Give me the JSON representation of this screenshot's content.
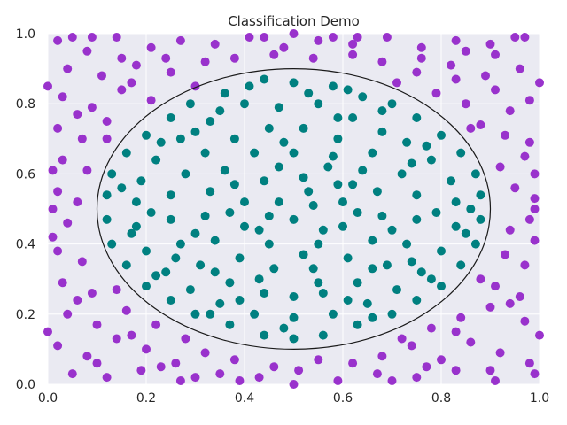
{
  "chart_data": {
    "type": "scatter",
    "title": "Classification Demo",
    "xlabel": "",
    "ylabel": "",
    "xlim": [
      0.0,
      1.0
    ],
    "ylim": [
      0.0,
      1.0
    ],
    "x_ticks": [
      "0.0",
      "0.2",
      "0.4",
      "0.6",
      "0.8",
      "1.0"
    ],
    "y_ticks": [
      "0.0",
      "0.2",
      "0.4",
      "0.6",
      "0.8",
      "1.0"
    ],
    "grid": true,
    "legend": "none",
    "background_color": "#eaeaf2",
    "boundary": {
      "shape": "ellipse",
      "center": [
        0.5,
        0.5
      ],
      "radius_x": 0.4,
      "radius_y": 0.4,
      "color": "#1a1a1a"
    },
    "series": [
      {
        "class": "inside",
        "color": "#008080",
        "points": [
          [
            0.5,
            0.86
          ],
          [
            0.44,
            0.87
          ],
          [
            0.58,
            0.85
          ],
          [
            0.36,
            0.83
          ],
          [
            0.64,
            0.82
          ],
          [
            0.29,
            0.8
          ],
          [
            0.7,
            0.8
          ],
          [
            0.25,
            0.76
          ],
          [
            0.75,
            0.76
          ],
          [
            0.2,
            0.71
          ],
          [
            0.8,
            0.71
          ],
          [
            0.16,
            0.66
          ],
          [
            0.84,
            0.66
          ],
          [
            0.13,
            0.6
          ],
          [
            0.87,
            0.6
          ],
          [
            0.12,
            0.54
          ],
          [
            0.88,
            0.54
          ],
          [
            0.12,
            0.47
          ],
          [
            0.88,
            0.47
          ],
          [
            0.13,
            0.4
          ],
          [
            0.87,
            0.4
          ],
          [
            0.16,
            0.34
          ],
          [
            0.84,
            0.34
          ],
          [
            0.2,
            0.28
          ],
          [
            0.8,
            0.28
          ],
          [
            0.25,
            0.24
          ],
          [
            0.75,
            0.24
          ],
          [
            0.3,
            0.2
          ],
          [
            0.7,
            0.2
          ],
          [
            0.37,
            0.17
          ],
          [
            0.63,
            0.17
          ],
          [
            0.44,
            0.14
          ],
          [
            0.56,
            0.14
          ],
          [
            0.5,
            0.13
          ],
          [
            0.4,
            0.8
          ],
          [
            0.47,
            0.79
          ],
          [
            0.55,
            0.8
          ],
          [
            0.62,
            0.76
          ],
          [
            0.33,
            0.75
          ],
          [
            0.27,
            0.7
          ],
          [
            0.68,
            0.72
          ],
          [
            0.73,
            0.69
          ],
          [
            0.22,
            0.64
          ],
          [
            0.78,
            0.64
          ],
          [
            0.19,
            0.58
          ],
          [
            0.82,
            0.58
          ],
          [
            0.18,
            0.52
          ],
          [
            0.83,
            0.52
          ],
          [
            0.18,
            0.45
          ],
          [
            0.83,
            0.45
          ],
          [
            0.2,
            0.38
          ],
          [
            0.8,
            0.38
          ],
          [
            0.24,
            0.32
          ],
          [
            0.76,
            0.32
          ],
          [
            0.29,
            0.27
          ],
          [
            0.71,
            0.27
          ],
          [
            0.35,
            0.23
          ],
          [
            0.65,
            0.23
          ],
          [
            0.42,
            0.2
          ],
          [
            0.58,
            0.2
          ],
          [
            0.5,
            0.19
          ],
          [
            0.45,
            0.73
          ],
          [
            0.52,
            0.73
          ],
          [
            0.38,
            0.7
          ],
          [
            0.59,
            0.7
          ],
          [
            0.32,
            0.66
          ],
          [
            0.66,
            0.66
          ],
          [
            0.28,
            0.6
          ],
          [
            0.72,
            0.6
          ],
          [
            0.25,
            0.54
          ],
          [
            0.75,
            0.54
          ],
          [
            0.25,
            0.47
          ],
          [
            0.75,
            0.47
          ],
          [
            0.27,
            0.4
          ],
          [
            0.73,
            0.4
          ],
          [
            0.31,
            0.34
          ],
          [
            0.69,
            0.34
          ],
          [
            0.37,
            0.29
          ],
          [
            0.63,
            0.29
          ],
          [
            0.44,
            0.26
          ],
          [
            0.56,
            0.26
          ],
          [
            0.5,
            0.25
          ],
          [
            0.42,
            0.66
          ],
          [
            0.5,
            0.66
          ],
          [
            0.58,
            0.65
          ],
          [
            0.36,
            0.61
          ],
          [
            0.64,
            0.61
          ],
          [
            0.33,
            0.55
          ],
          [
            0.67,
            0.55
          ],
          [
            0.32,
            0.48
          ],
          [
            0.68,
            0.48
          ],
          [
            0.34,
            0.41
          ],
          [
            0.66,
            0.41
          ],
          [
            0.39,
            0.36
          ],
          [
            0.61,
            0.36
          ],
          [
            0.46,
            0.33
          ],
          [
            0.54,
            0.33
          ],
          [
            0.44,
            0.58
          ],
          [
            0.52,
            0.59
          ],
          [
            0.59,
            0.57
          ],
          [
            0.4,
            0.52
          ],
          [
            0.6,
            0.52
          ],
          [
            0.4,
            0.45
          ],
          [
            0.6,
            0.45
          ],
          [
            0.45,
            0.4
          ],
          [
            0.55,
            0.4
          ],
          [
            0.5,
            0.47
          ],
          [
            0.47,
            0.52
          ],
          [
            0.54,
            0.51
          ],
          [
            0.35,
            0.78
          ],
          [
            0.61,
            0.84
          ],
          [
            0.23,
            0.69
          ],
          [
            0.77,
            0.68
          ],
          [
            0.15,
            0.56
          ],
          [
            0.86,
            0.5
          ],
          [
            0.17,
            0.43
          ],
          [
            0.85,
            0.43
          ],
          [
            0.22,
            0.31
          ],
          [
            0.78,
            0.3
          ],
          [
            0.33,
            0.2
          ],
          [
            0.66,
            0.19
          ],
          [
            0.48,
            0.16
          ],
          [
            0.53,
            0.83
          ],
          [
            0.41,
            0.85
          ],
          [
            0.68,
            0.78
          ],
          [
            0.3,
            0.72
          ],
          [
            0.74,
            0.63
          ],
          [
            0.21,
            0.49
          ],
          [
            0.79,
            0.49
          ],
          [
            0.26,
            0.36
          ],
          [
            0.74,
            0.35
          ],
          [
            0.39,
            0.24
          ],
          [
            0.61,
            0.24
          ],
          [
            0.47,
            0.62
          ],
          [
            0.56,
            0.44
          ],
          [
            0.43,
            0.44
          ],
          [
            0.63,
            0.49
          ],
          [
            0.37,
            0.49
          ],
          [
            0.52,
            0.37
          ],
          [
            0.48,
            0.69
          ],
          [
            0.57,
            0.62
          ],
          [
            0.3,
            0.43
          ],
          [
            0.7,
            0.44
          ],
          [
            0.53,
            0.55
          ],
          [
            0.45,
            0.48
          ],
          [
            0.38,
            0.57
          ],
          [
            0.62,
            0.57
          ],
          [
            0.55,
            0.29
          ],
          [
            0.34,
            0.32
          ],
          [
            0.66,
            0.33
          ],
          [
            0.43,
            0.3
          ],
          [
            0.59,
            0.76
          ]
        ]
      },
      {
        "class": "outside",
        "color": "#9932cc",
        "points": [
          [
            0.02,
            0.98
          ],
          [
            0.08,
            0.95
          ],
          [
            0.14,
            0.99
          ],
          [
            0.21,
            0.96
          ],
          [
            0.27,
            0.98
          ],
          [
            0.34,
            0.97
          ],
          [
            0.41,
            0.99
          ],
          [
            0.48,
            0.96
          ],
          [
            0.55,
            0.98
          ],
          [
            0.62,
            0.97
          ],
          [
            0.69,
            0.99
          ],
          [
            0.76,
            0.96
          ],
          [
            0.83,
            0.98
          ],
          [
            0.9,
            0.97
          ],
          [
            0.97,
            0.99
          ],
          [
            0.04,
            0.9
          ],
          [
            0.11,
            0.88
          ],
          [
            0.18,
            0.91
          ],
          [
            0.25,
            0.89
          ],
          [
            0.32,
            0.92
          ],
          [
            0.68,
            0.92
          ],
          [
            0.75,
            0.89
          ],
          [
            0.82,
            0.91
          ],
          [
            0.89,
            0.88
          ],
          [
            0.96,
            0.9
          ],
          [
            0.03,
            0.82
          ],
          [
            0.09,
            0.79
          ],
          [
            0.15,
            0.84
          ],
          [
            0.21,
            0.81
          ],
          [
            0.79,
            0.83
          ],
          [
            0.85,
            0.8
          ],
          [
            0.91,
            0.84
          ],
          [
            0.98,
            0.81
          ],
          [
            0.02,
            0.73
          ],
          [
            0.07,
            0.7
          ],
          [
            0.12,
            0.75
          ],
          [
            0.88,
            0.74
          ],
          [
            0.93,
            0.71
          ],
          [
            0.98,
            0.69
          ],
          [
            0.03,
            0.64
          ],
          [
            0.08,
            0.61
          ],
          [
            0.92,
            0.62
          ],
          [
            0.97,
            0.65
          ],
          [
            0.02,
            0.55
          ],
          [
            0.06,
            0.52
          ],
          [
            0.95,
            0.56
          ],
          [
            0.99,
            0.53
          ],
          [
            0.04,
            0.46
          ],
          [
            0.94,
            0.44
          ],
          [
            0.98,
            0.47
          ],
          [
            0.02,
            0.38
          ],
          [
            0.07,
            0.35
          ],
          [
            0.93,
            0.37
          ],
          [
            0.97,
            0.34
          ],
          [
            0.03,
            0.29
          ],
          [
            0.09,
            0.26
          ],
          [
            0.91,
            0.28
          ],
          [
            0.96,
            0.25
          ],
          [
            0.04,
            0.2
          ],
          [
            0.1,
            0.17
          ],
          [
            0.16,
            0.21
          ],
          [
            0.84,
            0.19
          ],
          [
            0.9,
            0.22
          ],
          [
            0.97,
            0.18
          ],
          [
            0.02,
            0.11
          ],
          [
            0.08,
            0.08
          ],
          [
            0.14,
            0.13
          ],
          [
            0.2,
            0.1
          ],
          [
            0.26,
            0.06
          ],
          [
            0.32,
            0.09
          ],
          [
            0.68,
            0.08
          ],
          [
            0.74,
            0.11
          ],
          [
            0.8,
            0.07
          ],
          [
            0.86,
            0.12
          ],
          [
            0.92,
            0.09
          ],
          [
            0.98,
            0.06
          ],
          [
            0.05,
            0.03
          ],
          [
            0.12,
            0.02
          ],
          [
            0.19,
            0.04
          ],
          [
            0.27,
            0.01
          ],
          [
            0.35,
            0.03
          ],
          [
            0.43,
            0.02
          ],
          [
            0.51,
            0.04
          ],
          [
            0.59,
            0.01
          ],
          [
            0.67,
            0.03
          ],
          [
            0.75,
            0.02
          ],
          [
            0.83,
            0.04
          ],
          [
            0.91,
            0.01
          ],
          [
            0.99,
            0.03
          ],
          [
            0.38,
            0.07
          ],
          [
            0.46,
            0.05
          ],
          [
            0.55,
            0.07
          ],
          [
            0.62,
            0.06
          ],
          [
            0.38,
            0.93
          ],
          [
            0.46,
            0.94
          ],
          [
            0.54,
            0.93
          ],
          [
            0.62,
            0.94
          ],
          [
            0.17,
            0.86
          ],
          [
            0.83,
            0.87
          ],
          [
            0.06,
            0.77
          ],
          [
            0.94,
            0.78
          ],
          [
            0.01,
            0.61
          ],
          [
            0.99,
            0.6
          ],
          [
            0.01,
            0.42
          ],
          [
            0.99,
            0.41
          ],
          [
            0.06,
            0.24
          ],
          [
            0.94,
            0.23
          ],
          [
            0.17,
            0.14
          ],
          [
            0.83,
            0.15
          ],
          [
            0.23,
            0.05
          ],
          [
            0.77,
            0.05
          ],
          [
            0.3,
            0.85
          ],
          [
            0.71,
            0.86
          ],
          [
            0.12,
            0.7
          ],
          [
            0.88,
            0.3
          ],
          [
            0.14,
            0.27
          ],
          [
            0.86,
            0.73
          ],
          [
            0.22,
            0.17
          ],
          [
            0.78,
            0.16
          ],
          [
            0.28,
            0.13
          ],
          [
            0.72,
            0.13
          ],
          [
            0.58,
            0.99
          ],
          [
            0.44,
            0.99
          ],
          [
            0.0,
            0.85
          ],
          [
            1.0,
            0.86
          ],
          [
            0.0,
            0.15
          ],
          [
            1.0,
            0.14
          ],
          [
            0.05,
            0.99
          ],
          [
            0.95,
            0.99
          ],
          [
            0.09,
            0.99
          ],
          [
            0.91,
            0.94
          ],
          [
            0.1,
            0.06
          ],
          [
            0.9,
            0.04
          ],
          [
            0.01,
            0.5
          ],
          [
            0.99,
            0.5
          ],
          [
            0.3,
            0.02
          ],
          [
            0.7,
            0.01
          ],
          [
            0.39,
            0.01
          ],
          [
            0.63,
            0.99
          ],
          [
            0.5,
            0.0
          ],
          [
            0.5,
            1.0
          ],
          [
            0.15,
            0.93
          ],
          [
            0.85,
            0.95
          ],
          [
            0.24,
            0.93
          ],
          [
            0.76,
            0.93
          ]
        ]
      }
    ]
  }
}
